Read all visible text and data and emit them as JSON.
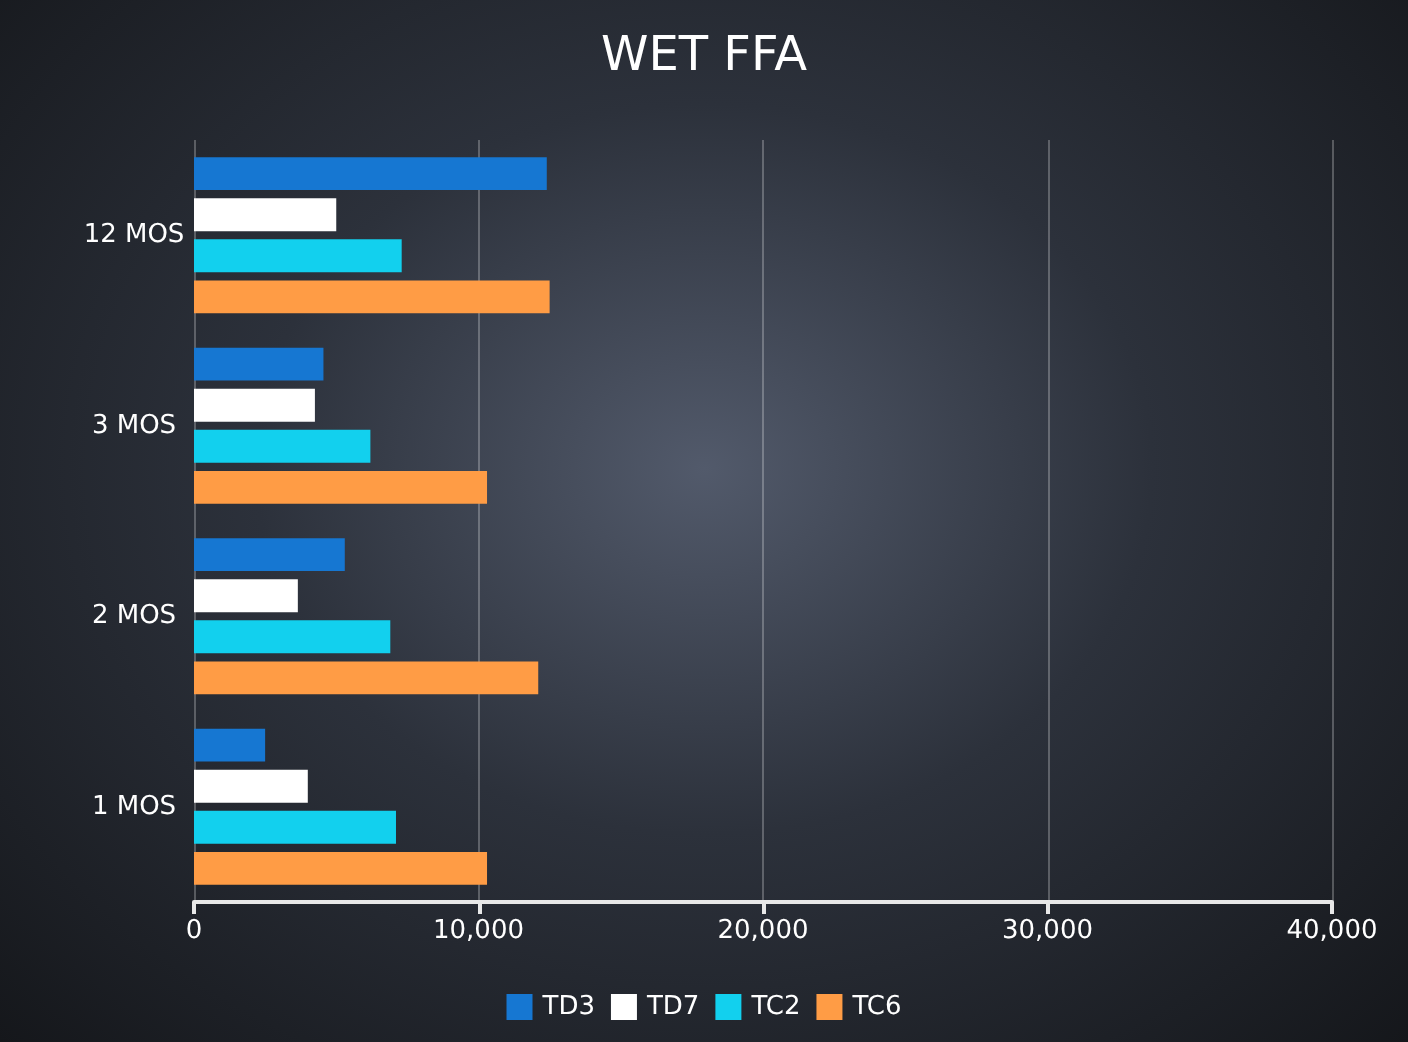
{
  "chart_data": {
    "type": "bar",
    "title": "WET FFA",
    "orientation": "horizontal",
    "categories": [
      "12 MOS",
      "3 MOS",
      "2 MOS",
      "1 MOS"
    ],
    "series": [
      {
        "name": "TD3",
        "color": "#1677d2",
        "values": [
          12400,
          4550,
          5300,
          2500
        ]
      },
      {
        "name": "TD7",
        "color": "#ffffff",
        "values": [
          5000,
          4250,
          3650,
          4000
        ]
      },
      {
        "name": "TC2",
        "color": "#12d0ee",
        "values": [
          7300,
          6200,
          6900,
          7100
        ]
      },
      {
        "name": "TC6",
        "color": "#ff9c45",
        "values": [
          12500,
          10300,
          12100,
          10300
        ]
      }
    ],
    "xlim": [
      0,
      40000
    ],
    "xticks": [
      {
        "value": 0,
        "label": "0"
      },
      {
        "value": 10000,
        "label": "10,000"
      },
      {
        "value": 20000,
        "label": "20,000"
      },
      {
        "value": 30000,
        "label": "30,000"
      },
      {
        "value": 40000,
        "label": "40,000"
      }
    ],
    "grid": "x",
    "legend": "bottom"
  }
}
